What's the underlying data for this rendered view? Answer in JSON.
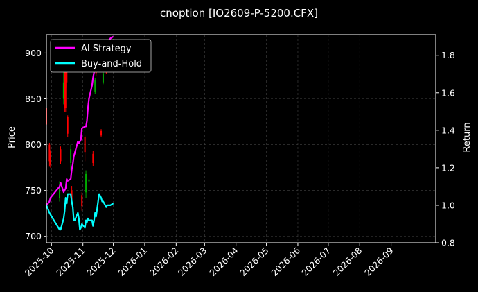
{
  "chart_data": {
    "type": "line",
    "title": "cnoption [IO2609-P-5200.CFX]",
    "xlabel": "",
    "ylabel_left": "Price",
    "ylabel_right": "Return",
    "x_range": [
      "2025-09-26",
      "2026-10-15"
    ],
    "ylim_left": [
      693,
      920
    ],
    "ylim_right": [
      0.8,
      1.91
    ],
    "y_ticks_left": [
      700,
      750,
      800,
      850,
      900
    ],
    "y_ticks_right": [
      0.8,
      1.0,
      1.2,
      1.4,
      1.6,
      1.8
    ],
    "x_ticks": [
      "2025-10",
      "2025-11",
      "2025-12",
      "2026-01",
      "2026-02",
      "2026-03",
      "2026-04",
      "2026-05",
      "2026-06",
      "2026-07",
      "2026-08",
      "2026-09"
    ],
    "grid": true,
    "legend_position": "top-left",
    "colors": {
      "background": "#000000",
      "strategy": "#ff00ff",
      "buyhold": "#00ffff",
      "candle_up": "#00aa00",
      "candle_down": "#ff0000",
      "grid": "#444444"
    },
    "series": [
      {
        "name": "AI Strategy",
        "axis": "right",
        "x": [
          "2025-09-26",
          "2025-09-29",
          "2025-09-30",
          "2025-10-09",
          "2025-10-10",
          "2025-10-13",
          "2025-10-14",
          "2025-10-15",
          "2025-10-16",
          "2025-10-17",
          "2025-10-20",
          "2025-10-21",
          "2025-10-22",
          "2025-10-23",
          "2025-10-24",
          "2025-10-27",
          "2025-10-28",
          "2025-10-29",
          "2025-10-30",
          "2025-10-31",
          "2025-11-03",
          "2025-11-04",
          "2025-11-05",
          "2025-11-06",
          "2025-11-07",
          "2025-11-10",
          "2025-11-11",
          "2025-11-12",
          "2025-11-13",
          "2025-11-14",
          "2025-11-17",
          "2025-11-18",
          "2025-11-19",
          "2025-11-20",
          "2025-11-21",
          "2025-11-24",
          "2025-11-25",
          "2025-11-26",
          "2025-11-27",
          "2025-11-28",
          "2025-12-01"
        ],
        "values": [
          1.0,
          1.02,
          1.04,
          1.1,
          1.12,
          1.07,
          1.08,
          1.09,
          1.14,
          1.13,
          1.14,
          1.19,
          1.22,
          1.26,
          1.28,
          1.34,
          1.33,
          1.34,
          1.35,
          1.41,
          1.42,
          1.42,
          1.45,
          1.52,
          1.57,
          1.64,
          1.68,
          1.71,
          1.75,
          1.78,
          1.79,
          1.81,
          1.82,
          1.83,
          1.84,
          1.85,
          1.86,
          1.87,
          1.88,
          1.89,
          1.9
        ]
      },
      {
        "name": "Buy-and-Hold",
        "axis": "right",
        "x": [
          "2025-09-26",
          "2025-09-29",
          "2025-09-30",
          "2025-10-09",
          "2025-10-10",
          "2025-10-13",
          "2025-10-14",
          "2025-10-15",
          "2025-10-16",
          "2025-10-17",
          "2025-10-20",
          "2025-10-21",
          "2025-10-22",
          "2025-10-23",
          "2025-10-24",
          "2025-10-27",
          "2025-10-28",
          "2025-10-29",
          "2025-10-30",
          "2025-10-31",
          "2025-11-03",
          "2025-11-04",
          "2025-11-05",
          "2025-11-06",
          "2025-11-07",
          "2025-11-10",
          "2025-11-11",
          "2025-11-12",
          "2025-11-13",
          "2025-11-14",
          "2025-11-17",
          "2025-11-18",
          "2025-11-19",
          "2025-11-20",
          "2025-11-21",
          "2025-11-24",
          "2025-11-25",
          "2025-11-26",
          "2025-11-27",
          "2025-11-28",
          "2025-12-01"
        ],
        "values": [
          1.0,
          0.96,
          0.95,
          0.87,
          0.87,
          0.93,
          0.97,
          1.04,
          1.01,
          1.06,
          1.06,
          1.02,
          0.99,
          0.92,
          0.92,
          0.96,
          0.93,
          0.87,
          0.88,
          0.9,
          0.88,
          0.92,
          0.91,
          0.93,
          0.92,
          0.92,
          0.89,
          0.92,
          0.96,
          0.94,
          1.06,
          1.05,
          1.04,
          1.02,
          1.02,
          0.99,
          1.0,
          1.0,
          1.0,
          1.0,
          1.01
        ]
      }
    ],
    "candles": [
      {
        "date": "2025-09-26",
        "open": 840,
        "close": 822,
        "high": 842,
        "low": 818
      },
      {
        "date": "2025-09-29",
        "open": 800,
        "close": 782,
        "high": 802,
        "low": 776
      },
      {
        "date": "2025-09-30",
        "open": 792,
        "close": 778,
        "high": 794,
        "low": 775
      },
      {
        "date": "2025-10-09",
        "open": 742,
        "close": 754,
        "high": 760,
        "low": 738
      },
      {
        "date": "2025-10-10",
        "open": 795,
        "close": 782,
        "high": 798,
        "low": 779
      },
      {
        "date": "2025-10-13",
        "open": 850,
        "close": 868,
        "high": 880,
        "low": 844
      },
      {
        "date": "2025-10-14",
        "open": 885,
        "close": 840,
        "high": 888,
        "low": 836
      },
      {
        "date": "2025-10-15",
        "open": 895,
        "close": 840,
        "high": 898,
        "low": 836
      },
      {
        "date": "2025-10-16",
        "open": 880,
        "close": 868,
        "high": 885,
        "low": 862
      },
      {
        "date": "2025-10-17",
        "open": 830,
        "close": 812,
        "high": 832,
        "low": 808
      },
      {
        "date": "2025-10-20",
        "open": 780,
        "close": 795,
        "high": 800,
        "low": 772
      },
      {
        "date": "2025-10-21",
        "open": 750,
        "close": 740,
        "high": 755,
        "low": 735
      },
      {
        "date": "2025-10-31",
        "open": 745,
        "close": 733,
        "high": 748,
        "low": 728
      },
      {
        "date": "2025-11-03",
        "open": 808,
        "close": 792,
        "high": 810,
        "low": 782
      },
      {
        "date": "2025-11-04",
        "open": 748,
        "close": 768,
        "high": 772,
        "low": 742
      },
      {
        "date": "2025-11-07",
        "open": 760,
        "close": 762,
        "high": 763,
        "low": 758
      },
      {
        "date": "2025-11-11",
        "open": 790,
        "close": 780,
        "high": 793,
        "low": 777
      },
      {
        "date": "2025-11-13",
        "open": 858,
        "close": 870,
        "high": 873,
        "low": 855
      },
      {
        "date": "2025-11-14",
        "open": 896,
        "close": 878,
        "high": 898,
        "low": 875
      },
      {
        "date": "2025-11-19",
        "open": 815,
        "close": 810,
        "high": 817,
        "low": 808
      },
      {
        "date": "2025-11-20",
        "open": 895,
        "close": 895,
        "high": 897,
        "low": 893
      },
      {
        "date": "2025-11-21",
        "open": 868,
        "close": 878,
        "high": 880,
        "low": 866
      },
      {
        "date": "2025-11-24",
        "open": 888,
        "close": 880,
        "high": 890,
        "low": 877
      }
    ]
  }
}
